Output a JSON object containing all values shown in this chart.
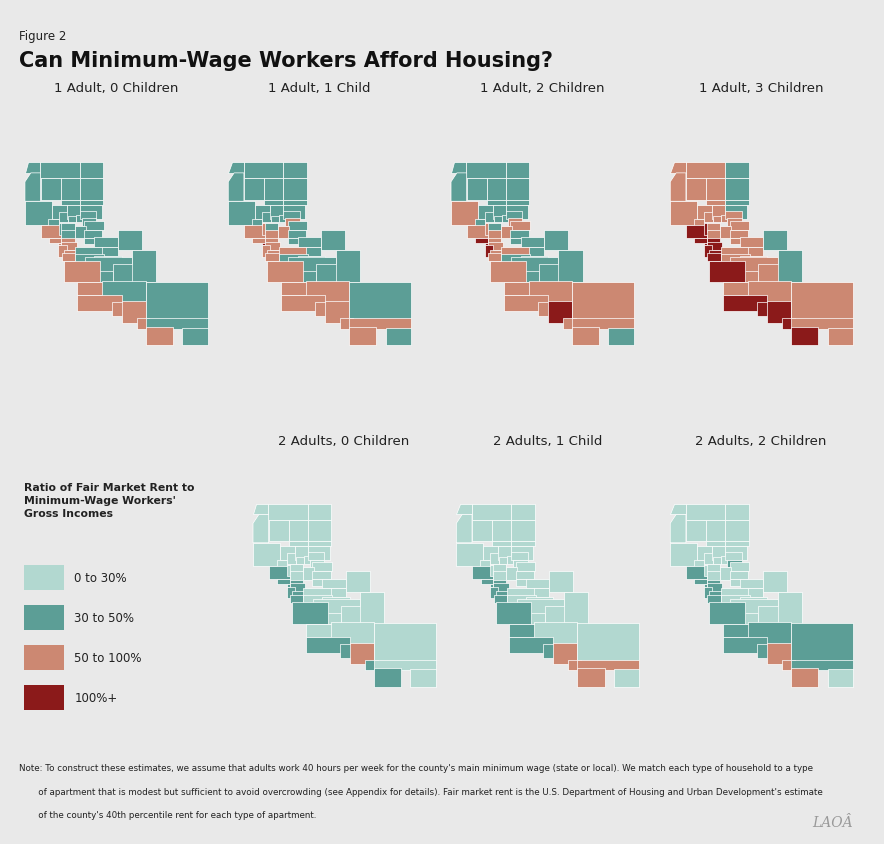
{
  "figure_label": "Figure 2",
  "title": "Can Minimum-Wage Workers Afford Housing?",
  "background_color": "#e9e9e9",
  "colors": {
    "c0": "#b2d8d0",
    "c1": "#5c9e96",
    "c2": "#cc8872",
    "c3": "#8b1a1a"
  },
  "panel_titles": [
    "1 Adult, 0 Children",
    "1 Adult, 1 Child",
    "1 Adult, 2 Children",
    "1 Adult, 3 Children",
    "2 Adults, 0 Children",
    "2 Adults, 1 Child",
    "2 Adults, 2 Children"
  ],
  "legend_title_lines": [
    "Ratio of Fair Market Rent to",
    "Minimum-Wage Workers'",
    "Gross Incomes"
  ],
  "legend_labels": [
    "0 to 30%",
    "30 to 50%",
    "50 to 100%",
    "100%+"
  ],
  "legend_color_keys": [
    "c0",
    "c1",
    "c2",
    "c3"
  ],
  "note_lines": [
    "Note: To construct these estimates, we assume that adults work 40 hours per week for the county's main minimum wage (state or local). We match each type of household to a type",
    "       of apartment that is modest but sufficient to avoid overcrowding (see Appendix for details). Fair market rent is the U.S. Department of Housing and Urban Development's estimate",
    "       of the county's 40th percentile rent for each type of apartment."
  ],
  "line_color": "#aaaaaa",
  "text_color": "#222222",
  "county_colors": {
    "panel0": {
      "Del Norte": "c1",
      "Siskiyou": "c1",
      "Modoc": "c1",
      "Trinity": "c1",
      "Shasta": "c1",
      "Lassen": "c1",
      "Humboldt": "c1",
      "Tehama": "c1",
      "Plumas": "c1",
      "Mendocino": "c1",
      "Glenn": "c1",
      "Butte": "c1",
      "Sierra": "c1",
      "Lake": "c1",
      "Colusa": "c1",
      "Sutter": "c1",
      "Nevada": "c1",
      "Yuba": "c1",
      "Sonoma": "c2",
      "Napa": "c1",
      "Yolo": "c1",
      "Sacramento": "c1",
      "El Dorado": "c1",
      "Placer": "c1",
      "Marin": "c2",
      "Contra Costa": "c2",
      "Solano": "c1",
      "Amador": "c1",
      "Calaveras": "c1",
      "Tuolumne": "c1",
      "San Francisco": "c2",
      "San Mateo": "c2",
      "Alameda": "c2",
      "Santa Clara": "c2",
      "Stanislaus": "c1",
      "Merced": "c1",
      "Mariposa": "c1",
      "Mono": "c1",
      "Santa Cruz": "c2",
      "San Benito": "c1",
      "Fresno": "c1",
      "Madera": "c1",
      "Inyo": "c1",
      "Monterey": "c2",
      "Kings": "c1",
      "Tulare": "c1",
      "San Luis Obispo": "c2",
      "Kern": "c1",
      "Santa Barbara": "c2",
      "Ventura": "c2",
      "Los Angeles": "c2",
      "San Bernardino": "c1",
      "Orange": "c2",
      "Riverside": "c1",
      "San Diego": "c2",
      "Imperial": "c1"
    },
    "panel1": {
      "Del Norte": "c1",
      "Siskiyou": "c1",
      "Modoc": "c1",
      "Trinity": "c1",
      "Shasta": "c1",
      "Lassen": "c1",
      "Humboldt": "c1",
      "Tehama": "c1",
      "Plumas": "c1",
      "Mendocino": "c1",
      "Glenn": "c1",
      "Butte": "c1",
      "Sierra": "c1",
      "Lake": "c1",
      "Colusa": "c1",
      "Sutter": "c1",
      "Nevada": "c1",
      "Yuba": "c1",
      "Sonoma": "c2",
      "Napa": "c2",
      "Yolo": "c1",
      "Sacramento": "c2",
      "El Dorado": "c1",
      "Placer": "c2",
      "Marin": "c2",
      "Contra Costa": "c2",
      "Solano": "c2",
      "Amador": "c1",
      "Calaveras": "c1",
      "Tuolumne": "c1",
      "San Francisco": "c3",
      "San Mateo": "c2",
      "Alameda": "c2",
      "Santa Clara": "c2",
      "Stanislaus": "c2",
      "Merced": "c1",
      "Mariposa": "c1",
      "Mono": "c1",
      "Santa Cruz": "c2",
      "San Benito": "c1",
      "Fresno": "c1",
      "Madera": "c1",
      "Inyo": "c1",
      "Monterey": "c2",
      "Kings": "c1",
      "Tulare": "c1",
      "San Luis Obispo": "c2",
      "Kern": "c2",
      "Santa Barbara": "c2",
      "Ventura": "c2",
      "Los Angeles": "c2",
      "San Bernardino": "c1",
      "Orange": "c2",
      "Riverside": "c2",
      "San Diego": "c2",
      "Imperial": "c1"
    },
    "panel2": {
      "Del Norte": "c1",
      "Siskiyou": "c1",
      "Modoc": "c1",
      "Trinity": "c1",
      "Shasta": "c1",
      "Lassen": "c1",
      "Humboldt": "c1",
      "Tehama": "c1",
      "Plumas": "c1",
      "Mendocino": "c2",
      "Glenn": "c1",
      "Butte": "c1",
      "Sierra": "c1",
      "Lake": "c1",
      "Colusa": "c1",
      "Sutter": "c1",
      "Nevada": "c1",
      "Yuba": "c1",
      "Sonoma": "c2",
      "Napa": "c2",
      "Yolo": "c1",
      "Sacramento": "c2",
      "El Dorado": "c2",
      "Placer": "c2",
      "Marin": "c3",
      "Contra Costa": "c2",
      "Solano": "c2",
      "Amador": "c1",
      "Calaveras": "c1",
      "Tuolumne": "c1",
      "San Francisco": "c3",
      "San Mateo": "c3",
      "Alameda": "c2",
      "Santa Clara": "c2",
      "Stanislaus": "c2",
      "Merced": "c1",
      "Mariposa": "c1",
      "Mono": "c1",
      "Santa Cruz": "c2",
      "San Benito": "c1",
      "Fresno": "c1",
      "Madera": "c1",
      "Inyo": "c1",
      "Monterey": "c2",
      "Kings": "c1",
      "Tulare": "c1",
      "San Luis Obispo": "c2",
      "Kern": "c2",
      "Santa Barbara": "c2",
      "Ventura": "c2",
      "Los Angeles": "c3",
      "San Bernardino": "c2",
      "Orange": "c2",
      "Riverside": "c2",
      "San Diego": "c2",
      "Imperial": "c1"
    },
    "panel3": {
      "Del Norte": "c2",
      "Siskiyou": "c2",
      "Modoc": "c1",
      "Trinity": "c2",
      "Shasta": "c2",
      "Lassen": "c1",
      "Humboldt": "c2",
      "Tehama": "c2",
      "Plumas": "c1",
      "Mendocino": "c2",
      "Glenn": "c2",
      "Butte": "c2",
      "Sierra": "c1",
      "Lake": "c2",
      "Colusa": "c2",
      "Sutter": "c2",
      "Nevada": "c2",
      "Yuba": "c2",
      "Sonoma": "c3",
      "Napa": "c3",
      "Yolo": "c2",
      "Sacramento": "c2",
      "El Dorado": "c2",
      "Placer": "c2",
      "Marin": "c3",
      "Contra Costa": "c3",
      "Solano": "c2",
      "Amador": "c2",
      "Calaveras": "c2",
      "Tuolumne": "c2",
      "San Francisco": "c3",
      "San Mateo": "c3",
      "Alameda": "c3",
      "Santa Clara": "c3",
      "Stanislaus": "c2",
      "Merced": "c2",
      "Mariposa": "c2",
      "Mono": "c1",
      "Santa Cruz": "c3",
      "San Benito": "c2",
      "Fresno": "c2",
      "Madera": "c2",
      "Inyo": "c1",
      "Monterey": "c3",
      "Kings": "c2",
      "Tulare": "c2",
      "San Luis Obispo": "c2",
      "Kern": "c2",
      "Santa Barbara": "c3",
      "Ventura": "c3",
      "Los Angeles": "c3",
      "San Bernardino": "c2",
      "Orange": "c3",
      "Riverside": "c2",
      "San Diego": "c3",
      "Imperial": "c2"
    },
    "panel4": {
      "Del Norte": "c0",
      "Siskiyou": "c0",
      "Modoc": "c0",
      "Trinity": "c0",
      "Shasta": "c0",
      "Lassen": "c0",
      "Humboldt": "c0",
      "Tehama": "c0",
      "Plumas": "c0",
      "Mendocino": "c0",
      "Glenn": "c0",
      "Butte": "c0",
      "Sierra": "c0",
      "Lake": "c0",
      "Colusa": "c0",
      "Sutter": "c0",
      "Nevada": "c0",
      "Yuba": "c0",
      "Sonoma": "c1",
      "Napa": "c0",
      "Yolo": "c0",
      "Sacramento": "c0",
      "El Dorado": "c0",
      "Placer": "c0",
      "Marin": "c1",
      "Contra Costa": "c1",
      "Solano": "c0",
      "Amador": "c0",
      "Calaveras": "c0",
      "Tuolumne": "c0",
      "San Francisco": "c1",
      "San Mateo": "c1",
      "Alameda": "c1",
      "Santa Clara": "c1",
      "Stanislaus": "c0",
      "Merced": "c0",
      "Mariposa": "c0",
      "Mono": "c0",
      "Santa Cruz": "c1",
      "San Benito": "c0",
      "Fresno": "c0",
      "Madera": "c0",
      "Inyo": "c0",
      "Monterey": "c1",
      "Kings": "c0",
      "Tulare": "c0",
      "San Luis Obispo": "c0",
      "Kern": "c0",
      "Santa Barbara": "c1",
      "Ventura": "c1",
      "Los Angeles": "c2",
      "San Bernardino": "c0",
      "Orange": "c1",
      "Riverside": "c0",
      "San Diego": "c1",
      "Imperial": "c0"
    },
    "panel5": {
      "Del Norte": "c0",
      "Siskiyou": "c0",
      "Modoc": "c0",
      "Trinity": "c0",
      "Shasta": "c0",
      "Lassen": "c0",
      "Humboldt": "c0",
      "Tehama": "c0",
      "Plumas": "c0",
      "Mendocino": "c0",
      "Glenn": "c0",
      "Butte": "c0",
      "Sierra": "c0",
      "Lake": "c0",
      "Colusa": "c0",
      "Sutter": "c0",
      "Nevada": "c0",
      "Yuba": "c0",
      "Sonoma": "c1",
      "Napa": "c0",
      "Yolo": "c0",
      "Sacramento": "c0",
      "El Dorado": "c0",
      "Placer": "c0",
      "Marin": "c1",
      "Contra Costa": "c1",
      "Solano": "c0",
      "Amador": "c0",
      "Calaveras": "c0",
      "Tuolumne": "c0",
      "San Francisco": "c1",
      "San Mateo": "c1",
      "Alameda": "c1",
      "Santa Clara": "c1",
      "Stanislaus": "c0",
      "Merced": "c0",
      "Mariposa": "c0",
      "Mono": "c0",
      "Santa Cruz": "c1",
      "San Benito": "c0",
      "Fresno": "c0",
      "Madera": "c0",
      "Inyo": "c0",
      "Monterey": "c1",
      "Kings": "c0",
      "Tulare": "c0",
      "San Luis Obispo": "c1",
      "Kern": "c0",
      "Santa Barbara": "c1",
      "Ventura": "c1",
      "Los Angeles": "c2",
      "San Bernardino": "c0",
      "Orange": "c2",
      "Riverside": "c2",
      "San Diego": "c2",
      "Imperial": "c0"
    },
    "panel6": {
      "Del Norte": "c0",
      "Siskiyou": "c0",
      "Modoc": "c0",
      "Trinity": "c0",
      "Shasta": "c0",
      "Lassen": "c0",
      "Humboldt": "c0",
      "Tehama": "c0",
      "Plumas": "c0",
      "Mendocino": "c0",
      "Glenn": "c0",
      "Butte": "c0",
      "Sierra": "c0",
      "Lake": "c0",
      "Colusa": "c0",
      "Sutter": "c0",
      "Nevada": "c0",
      "Yuba": "c0",
      "Sonoma": "c1",
      "Napa": "c0",
      "Yolo": "c0",
      "Sacramento": "c0",
      "El Dorado": "c0",
      "Placer": "c1",
      "Marin": "c1",
      "Contra Costa": "c1",
      "Solano": "c0",
      "Amador": "c0",
      "Calaveras": "c0",
      "Tuolumne": "c0",
      "San Francisco": "c1",
      "San Mateo": "c1",
      "Alameda": "c1",
      "Santa Clara": "c1",
      "Stanislaus": "c0",
      "Merced": "c0",
      "Mariposa": "c0",
      "Mono": "c0",
      "Santa Cruz": "c1",
      "San Benito": "c0",
      "Fresno": "c0",
      "Madera": "c0",
      "Inyo": "c0",
      "Monterey": "c1",
      "Kings": "c0",
      "Tulare": "c0",
      "San Luis Obispo": "c1",
      "Kern": "c1",
      "Santa Barbara": "c1",
      "Ventura": "c1",
      "Los Angeles": "c2",
      "San Bernardino": "c1",
      "Orange": "c2",
      "Riverside": "c1",
      "San Diego": "c2",
      "Imperial": "c0"
    }
  }
}
